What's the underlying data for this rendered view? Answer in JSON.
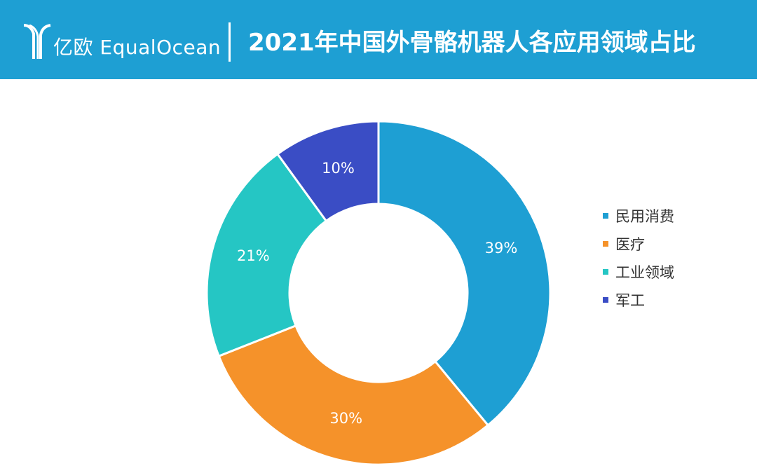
{
  "header": {
    "brand_cn": "亿欧",
    "brand_en": "EqualOcean",
    "title": "2021年中国外骨骼机器人各应用领域占比",
    "background": "#1e9fd3"
  },
  "chart_data": {
    "type": "pie",
    "title": "2021年中国外骨骼机器人各应用领域占比",
    "donut": true,
    "categories": [
      "民用消费",
      "医疗",
      "工业领域",
      "军工"
    ],
    "values": [
      39,
      30,
      21,
      10
    ],
    "labels": [
      "39%",
      "30%",
      "21%",
      "10%"
    ],
    "colors": [
      "#1e9fd3",
      "#f5922a",
      "#25c6c4",
      "#3a4dc5"
    ],
    "legend_position": "right"
  }
}
